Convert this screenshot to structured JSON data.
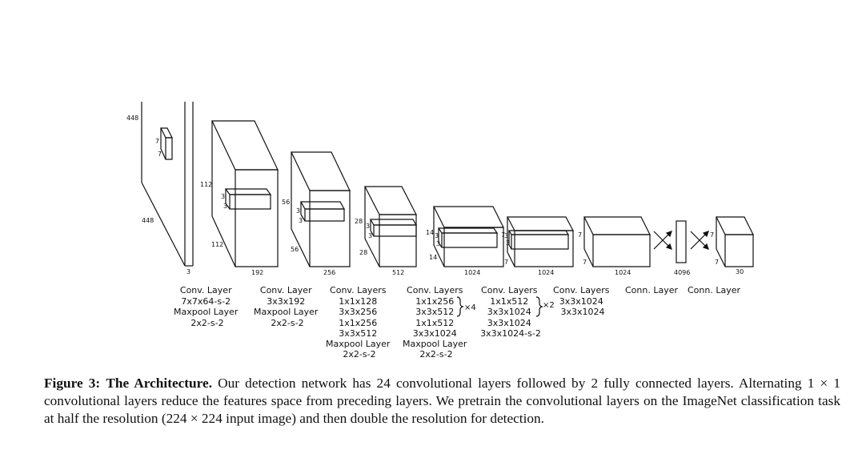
{
  "figure": {
    "stages": [
      {
        "dims": [
          "448",
          "448",
          "3",
          "7",
          "7"
        ],
        "label": [
          "Conv. Layer",
          "7x7x64-s-2",
          "Maxpool Layer",
          "2x2-s-2"
        ]
      },
      {
        "dims": [
          "112",
          "112",
          "192",
          "3",
          "3"
        ],
        "label": [
          "Conv. Layer",
          "3x3x192",
          "Maxpool Layer",
          "2x2-s-2"
        ]
      },
      {
        "dims": [
          "56",
          "56",
          "256",
          "3",
          "3"
        ],
        "label": [
          "Conv. Layers",
          "1x1x128",
          "3x3x256",
          "1x1x256",
          "3x3x512",
          "Maxpool Layer",
          "2x2-s-2"
        ]
      },
      {
        "dims": [
          "28",
          "28",
          "512",
          "3",
          "3"
        ],
        "label": [
          "Conv. Layers",
          "1x1x256",
          "3x3x512",
          "1x1x512",
          "3x3x1024",
          "Maxpool Layer",
          "2x2-s-2"
        ],
        "repeat": "×4"
      },
      {
        "dims": [
          "14",
          "14",
          "1024",
          "3",
          "3"
        ],
        "label": [
          "Conv. Layers",
          "1x1x512",
          "3x3x1024",
          "3x3x1024",
          "3x3x1024-s-2"
        ],
        "repeat": "×2"
      },
      {
        "dims": [
          "7",
          "7",
          "1024",
          "3",
          "3"
        ],
        "label": [
          "Conv. Layers",
          "3x3x1024",
          "3x3x1024"
        ]
      },
      {
        "dims": [
          "7",
          "7",
          "1024"
        ],
        "label": [
          "Conn. Layer"
        ]
      },
      {
        "dims": [
          "4096"
        ],
        "label": [
          "Conn. Layer"
        ]
      },
      {
        "dims": [
          "7",
          "7",
          "30"
        ]
      }
    ]
  },
  "caption": {
    "label": "Figure 3:",
    "title": "The Architecture.",
    "text": "Our detection network has 24 convolutional layers followed by 2 fully connected layers. Alternating 1 × 1 convolutional layers reduce the features space from preceding layers. We pretrain the convolutional layers on the ImageNet classification task at half the resolution (224 × 224 input image) and then double the resolution for detection."
  }
}
